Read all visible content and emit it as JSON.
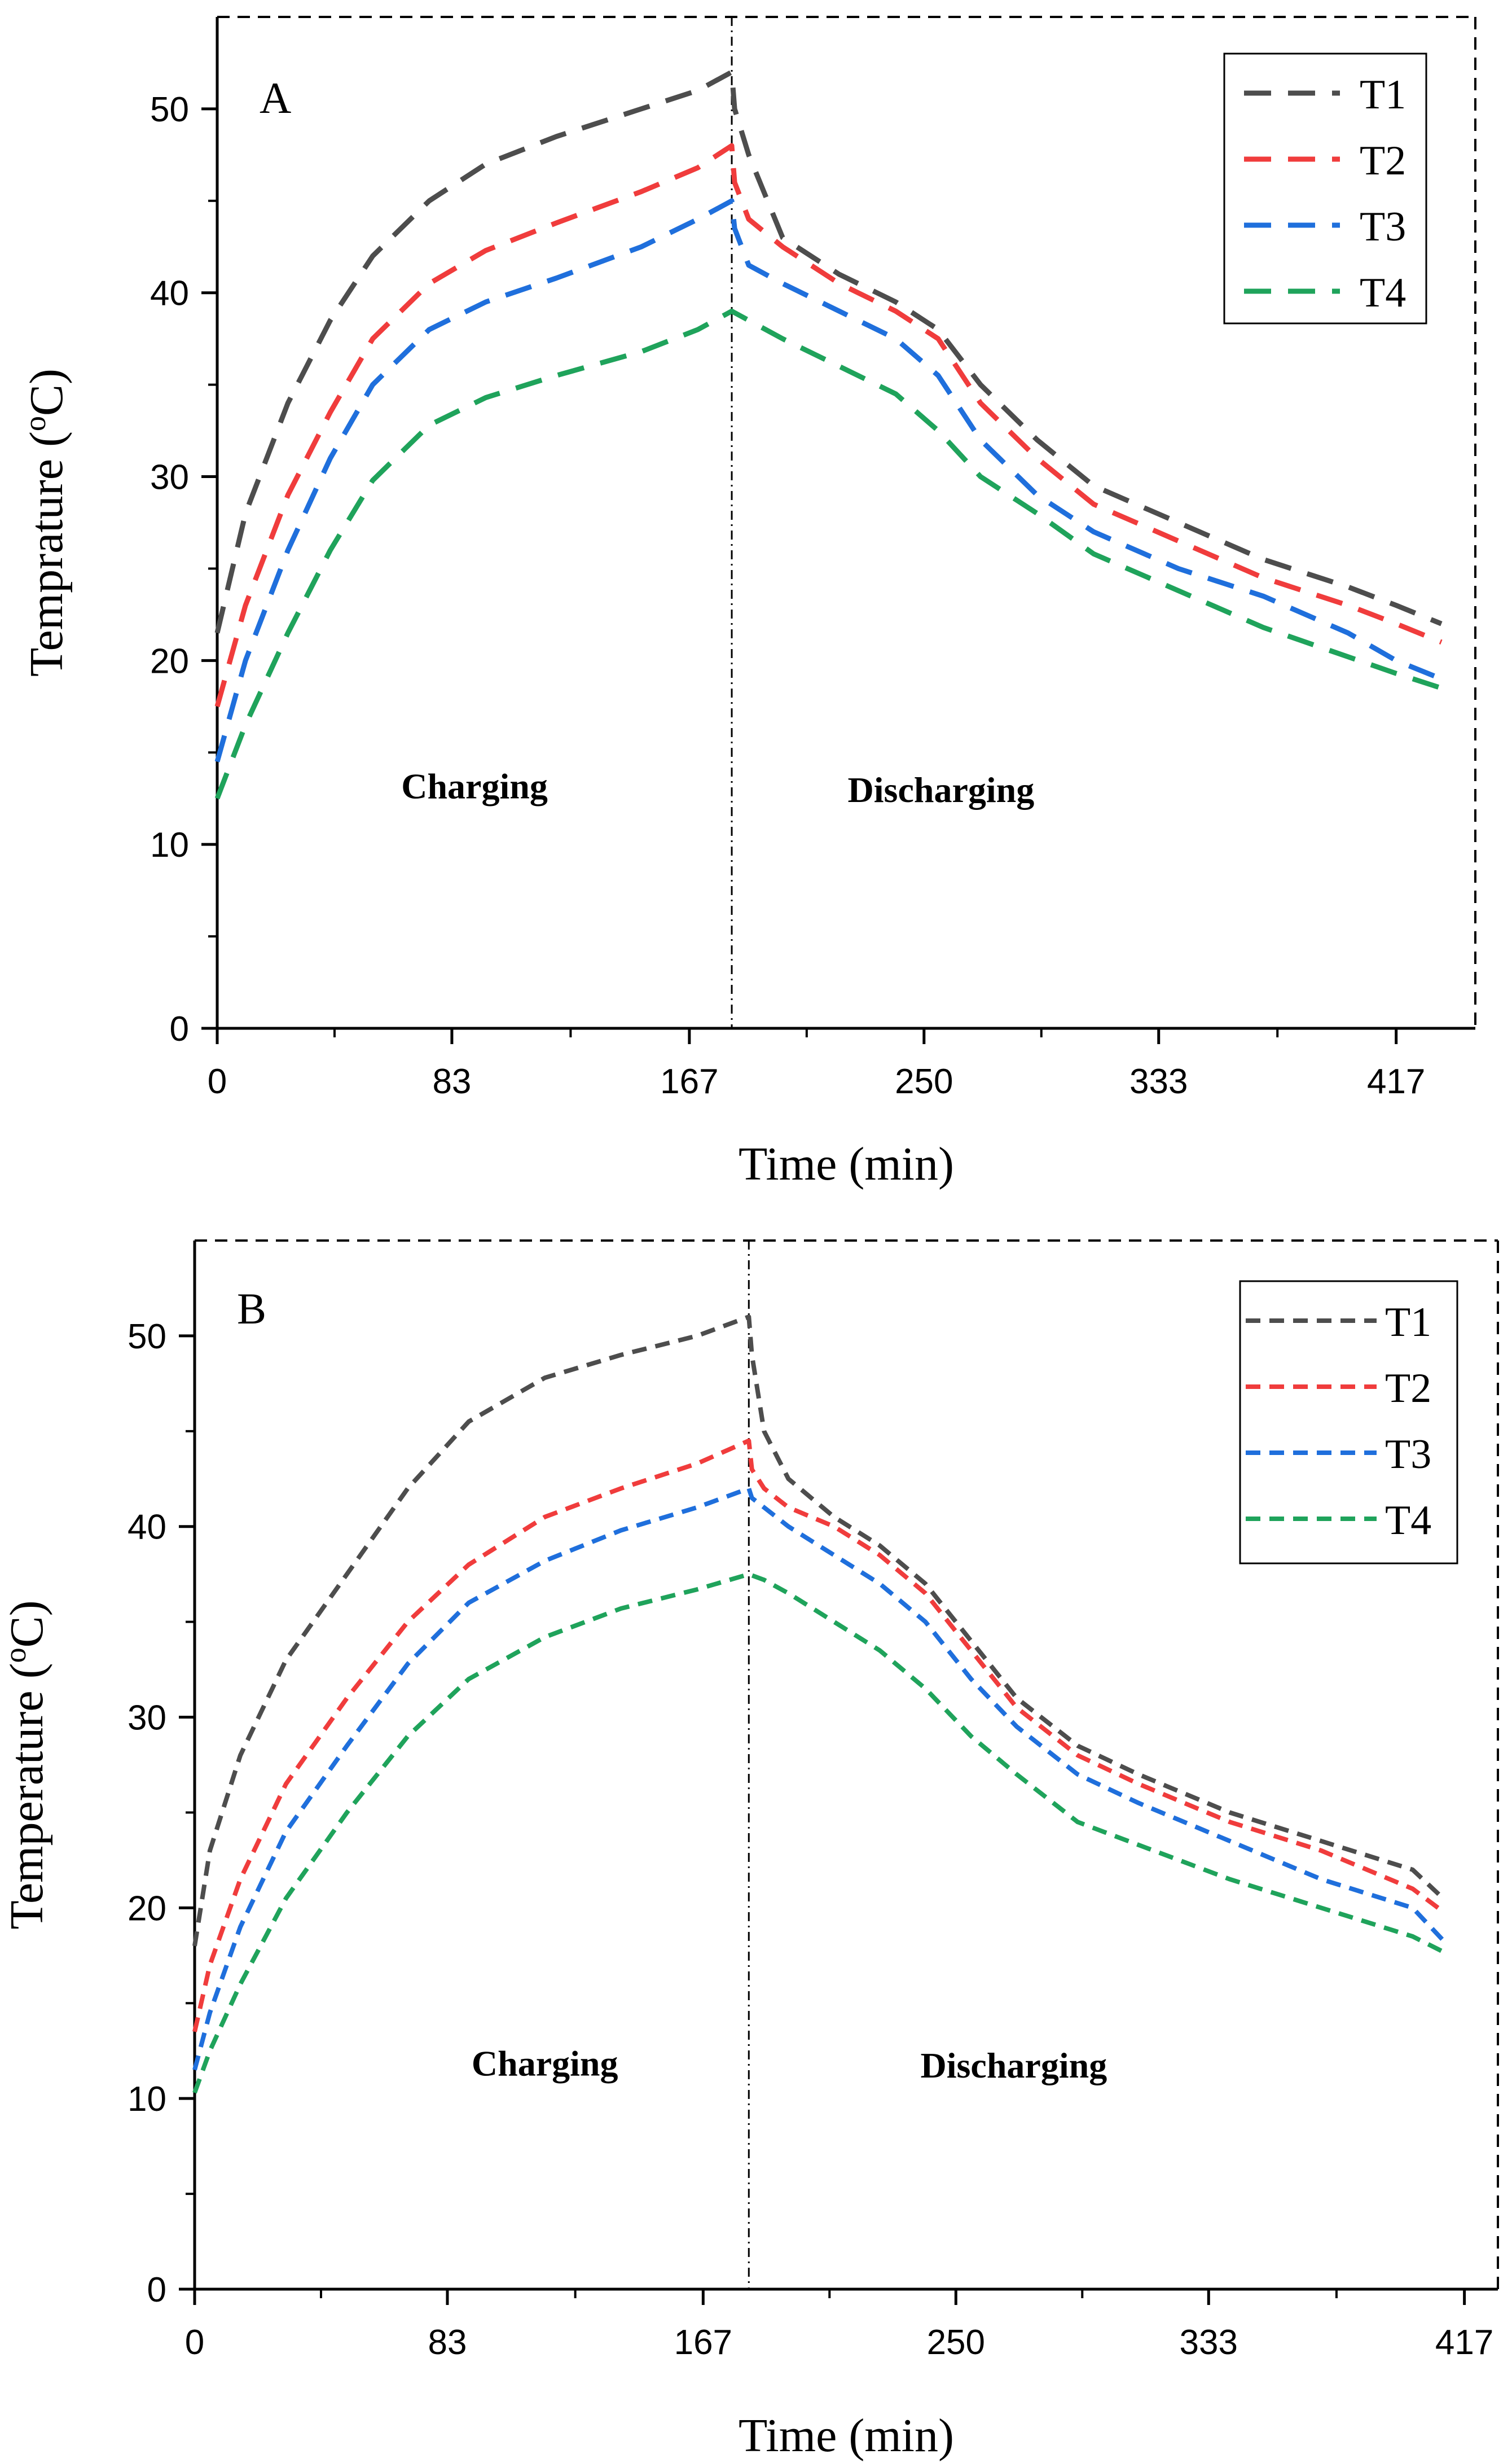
{
  "chart_data": [
    {
      "type": "line",
      "panel_label": "A",
      "xlabel": "Time (min)",
      "ylabel_main": "Temprature (",
      "ylabel_sup": "o",
      "ylabel_end": "C)",
      "xticks": [
        0,
        83,
        167,
        250,
        333,
        417
      ],
      "yticks": [
        0,
        10,
        20,
        30,
        40,
        50
      ],
      "xlim": [
        0,
        445
      ],
      "ylim": [
        0,
        55
      ],
      "phase_split_x": 182,
      "phases": [
        {
          "label": "Charging",
          "x": 91,
          "y": 12.5
        },
        {
          "label": "Discharging",
          "x": 256,
          "y": 12.3
        }
      ],
      "legend_position": "top-right",
      "series": [
        {
          "name": "T1",
          "color": "#4d4d4d",
          "x": [
            0,
            10,
            25,
            40,
            55,
            75,
            95,
            120,
            150,
            170,
            182,
            183,
            188,
            200,
            220,
            240,
            255,
            270,
            290,
            310,
            340,
            370,
            400,
            417,
            433
          ],
          "y": [
            21.5,
            28,
            34,
            38.5,
            42,
            45,
            47,
            48.5,
            50,
            51,
            52,
            50,
            47.5,
            43,
            41,
            39.5,
            38,
            35,
            32,
            29.5,
            27.5,
            25.5,
            24,
            23,
            22
          ]
        },
        {
          "name": "T2",
          "color": "#f03c3c",
          "x": [
            0,
            10,
            25,
            40,
            55,
            75,
            95,
            120,
            150,
            170,
            182,
            183,
            188,
            200,
            220,
            240,
            255,
            270,
            290,
            310,
            340,
            370,
            400,
            417,
            433
          ],
          "y": [
            17.5,
            23,
            29,
            33.5,
            37.5,
            40.5,
            42.3,
            43.8,
            45.5,
            46.8,
            48,
            46,
            44,
            42.5,
            40.5,
            39,
            37.5,
            34,
            31,
            28.5,
            26.5,
            24.5,
            23,
            22,
            21
          ]
        },
        {
          "name": "T3",
          "color": "#1f6fdc",
          "x": [
            0,
            10,
            25,
            40,
            55,
            75,
            95,
            120,
            150,
            170,
            182,
            183,
            188,
            200,
            220,
            240,
            255,
            270,
            290,
            310,
            340,
            370,
            400,
            417,
            433
          ],
          "y": [
            14.5,
            20,
            26,
            31,
            35,
            38,
            39.5,
            40.8,
            42.5,
            44,
            45,
            43.5,
            41.5,
            40.5,
            39,
            37.5,
            35.5,
            32,
            29,
            27,
            25,
            23.5,
            21.5,
            20,
            19
          ]
        },
        {
          "name": "T4",
          "color": "#1fa35b",
          "x": [
            0,
            10,
            25,
            40,
            55,
            75,
            95,
            120,
            150,
            170,
            182,
            188,
            200,
            220,
            240,
            255,
            270,
            290,
            310,
            340,
            370,
            400,
            417,
            433
          ],
          "y": [
            12.5,
            16.5,
            21.5,
            26,
            29.8,
            32.8,
            34.3,
            35.5,
            36.8,
            38,
            39,
            38.5,
            37.5,
            36,
            34.5,
            32.5,
            30,
            28,
            25.8,
            23.8,
            21.8,
            20.2,
            19.3,
            18.5
          ]
        }
      ]
    },
    {
      "type": "line",
      "panel_label": "B",
      "xlabel": "Time (min)",
      "ylabel_main": "Temperature (",
      "ylabel_sup": "o",
      "ylabel_end": "C)",
      "xticks": [
        0,
        83,
        167,
        250,
        333,
        417
      ],
      "yticks": [
        0,
        10,
        20,
        30,
        40,
        50
      ],
      "xlim": [
        0,
        428
      ],
      "ylim": [
        0,
        55
      ],
      "phase_split_x": 182,
      "phases": [
        {
          "label": "Charging",
          "x": 115,
          "y": 11.2
        },
        {
          "label": "Discharging",
          "x": 269,
          "y": 11.1
        }
      ],
      "legend_position": "top-right",
      "series": [
        {
          "name": "T1",
          "color": "#4d4d4d",
          "x": [
            0,
            5,
            15,
            30,
            50,
            70,
            90,
            115,
            140,
            165,
            182,
            183,
            187,
            195,
            210,
            225,
            240,
            255,
            270,
            290,
            310,
            340,
            370,
            400,
            410
          ],
          "y": [
            18,
            23,
            28,
            33,
            37.5,
            42,
            45.5,
            47.8,
            49,
            50,
            51,
            49,
            45,
            42.5,
            40.5,
            39,
            37,
            34,
            31,
            28.5,
            27,
            25,
            23.5,
            22,
            20.5
          ]
        },
        {
          "name": "T2",
          "color": "#f03c3c",
          "x": [
            0,
            5,
            15,
            30,
            50,
            70,
            90,
            115,
            140,
            165,
            182,
            183,
            187,
            195,
            210,
            225,
            240,
            255,
            270,
            290,
            310,
            340,
            370,
            400,
            410
          ],
          "y": [
            13.5,
            17,
            21.5,
            26.5,
            31,
            35,
            38,
            40.5,
            42,
            43.3,
            44.5,
            43,
            42,
            41,
            40,
            38.5,
            36.5,
            33.5,
            30.5,
            28,
            26.5,
            24.5,
            23,
            21,
            19.8
          ]
        },
        {
          "name": "T3",
          "color": "#1f6fdc",
          "x": [
            0,
            5,
            15,
            30,
            50,
            70,
            90,
            115,
            140,
            165,
            182,
            183,
            187,
            195,
            210,
            225,
            240,
            255,
            270,
            290,
            310,
            340,
            370,
            400,
            410
          ],
          "y": [
            11.5,
            14.5,
            19,
            24,
            28.5,
            32.8,
            36,
            38.2,
            39.8,
            41,
            42,
            41.5,
            41,
            40,
            38.5,
            37,
            35,
            32,
            29.5,
            27,
            25.5,
            23.5,
            21.5,
            20,
            18.3
          ]
        },
        {
          "name": "T4",
          "color": "#1fa35b",
          "x": [
            0,
            5,
            15,
            30,
            50,
            70,
            90,
            115,
            140,
            165,
            182,
            187,
            195,
            210,
            225,
            240,
            255,
            270,
            290,
            310,
            340,
            370,
            400,
            410
          ],
          "y": [
            10.3,
            12.5,
            16,
            20.5,
            25,
            29,
            32,
            34.2,
            35.7,
            36.7,
            37.5,
            37.2,
            36.5,
            35,
            33.5,
            31.5,
            29,
            27,
            24.5,
            23.3,
            21.5,
            20,
            18.5,
            17.7
          ]
        }
      ]
    }
  ]
}
